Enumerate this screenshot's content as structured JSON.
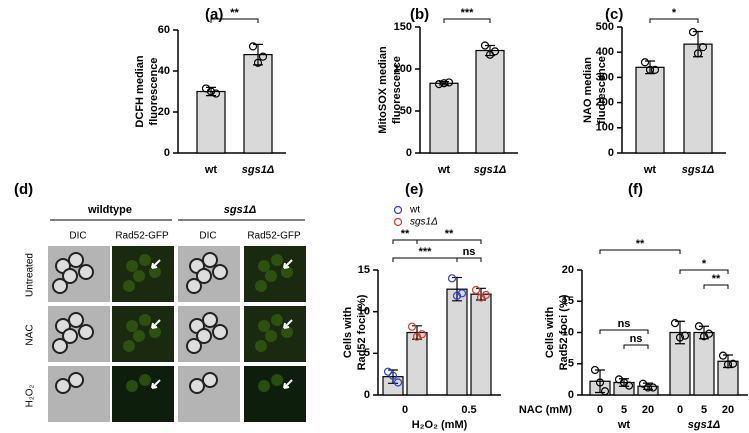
{
  "chart_data": [
    {
      "type": "bar",
      "panel_label": "(a)",
      "ylabel": [
        "DCFH median",
        "fluorescence"
      ],
      "categories": [
        "wt",
        "sgs1Δ"
      ],
      "values": [
        30,
        48
      ],
      "errors": [
        2,
        5
      ],
      "points": [
        [
          31.5,
          29,
          30
        ],
        [
          52,
          47,
          44
        ]
      ],
      "ylim": [
        0,
        60
      ],
      "yticks": [
        0,
        20,
        40,
        60
      ],
      "significance": [
        {
          "between": [
            0,
            1
          ],
          "label": "**"
        }
      ]
    },
    {
      "type": "bar",
      "panel_label": "(b)",
      "ylabel": [
        "MitoSOX median",
        "fluorescence"
      ],
      "categories": [
        "wt",
        "sgs1Δ"
      ],
      "values": [
        83,
        122
      ],
      "errors": [
        2,
        6
      ],
      "points": [
        [
          82,
          84,
          83
        ],
        [
          128,
          121,
          117
        ]
      ],
      "ylim": [
        0,
        150
      ],
      "yticks": [
        0,
        50,
        100,
        150
      ],
      "significance": [
        {
          "between": [
            0,
            1
          ],
          "label": "***"
        }
      ]
    },
    {
      "type": "bar",
      "panel_label": "(c)",
      "ylabel": [
        "NAO median",
        "fluorescence"
      ],
      "categories": [
        "wt",
        "sgs1Δ"
      ],
      "values": [
        340,
        432
      ],
      "errors": [
        25,
        50
      ],
      "points": [
        [
          360,
          330,
          330
        ],
        [
          480,
          420,
          395
        ]
      ],
      "ylim": [
        0,
        500
      ],
      "yticks": [
        0,
        100,
        200,
        300,
        400,
        500
      ],
      "significance": [
        {
          "between": [
            0,
            1
          ],
          "label": "*"
        }
      ]
    },
    {
      "type": "bar",
      "panel_label": "(e)",
      "ylabel": [
        "Cells with",
        "Rad52 foci (%)"
      ],
      "xlabel": "H₂O₂ (mM)",
      "categories": [
        "0",
        "0.5"
      ],
      "series": [
        {
          "name": "wt",
          "color": "#2b3fd6",
          "values": [
            2.2,
            12.7
          ],
          "errors": [
            0.8,
            1.4
          ],
          "points": [
            [
              2.8,
              1.5,
              2.3
            ],
            [
              14,
              12.2,
              11.9
            ]
          ]
        },
        {
          "name": "sgs1Δ",
          "color": "#d8392b",
          "values": [
            7.5,
            12.1
          ],
          "errors": [
            0.8,
            0.7
          ],
          "points": [
            [
              8.2,
              7.3,
              7
            ],
            [
              12.6,
              12,
              11.7
            ]
          ]
        }
      ],
      "ylim": [
        0,
        15
      ],
      "yticks": [
        0,
        5,
        10,
        15
      ],
      "significance": [
        {
          "between": [
            0,
            1
          ],
          "label": "**"
        },
        {
          "between": [
            1,
            3
          ],
          "label": "**"
        },
        {
          "between": [
            0,
            2
          ],
          "label": "***"
        },
        {
          "between": [
            2,
            3
          ],
          "label": "ns"
        }
      ]
    },
    {
      "type": "bar",
      "panel_label": "(f)",
      "ylabel": [
        "Cells with",
        "Rad52 foci (%)"
      ],
      "xlabel": "NAC (mM)",
      "categories": [
        "0",
        "5",
        "20",
        "0",
        "5",
        "20"
      ],
      "groups": [
        "wt",
        "sgs1Δ"
      ],
      "values": [
        2.2,
        2.0,
        1.4,
        10,
        10,
        5.4
      ],
      "errors": [
        1.8,
        0.6,
        0.5,
        1.8,
        1.0,
        1.0
      ],
      "points": [
        [
          4,
          0.6,
          2
        ],
        [
          2.5,
          1.5,
          2
        ],
        [
          1.8,
          1.2,
          1.2
        ],
        [
          11.5,
          9.5,
          9.2
        ],
        [
          11,
          9.8,
          9.4
        ],
        [
          6.3,
          5,
          4.9
        ]
      ],
      "ylim": [
        0,
        20
      ],
      "yticks": [
        0,
        5,
        10,
        15,
        20
      ],
      "significance": [
        {
          "between": [
            0,
            3
          ],
          "label": "**"
        },
        {
          "between": [
            0,
            2
          ],
          "label": "ns"
        },
        {
          "between": [
            1,
            2
          ],
          "label": "ns"
        },
        {
          "between": [
            3,
            5
          ],
          "label": "*"
        },
        {
          "between": [
            4,
            5
          ],
          "label": "**"
        }
      ]
    }
  ],
  "microscopy": {
    "panel_label": "(d)",
    "groups": [
      "wildtype",
      "sgs1Δ"
    ],
    "columns": [
      "DIC",
      "Rad52-GFP",
      "DIC",
      "Rad52-GFP"
    ],
    "rows": [
      "Untreated",
      "NAC",
      "H₂O₂"
    ]
  }
}
